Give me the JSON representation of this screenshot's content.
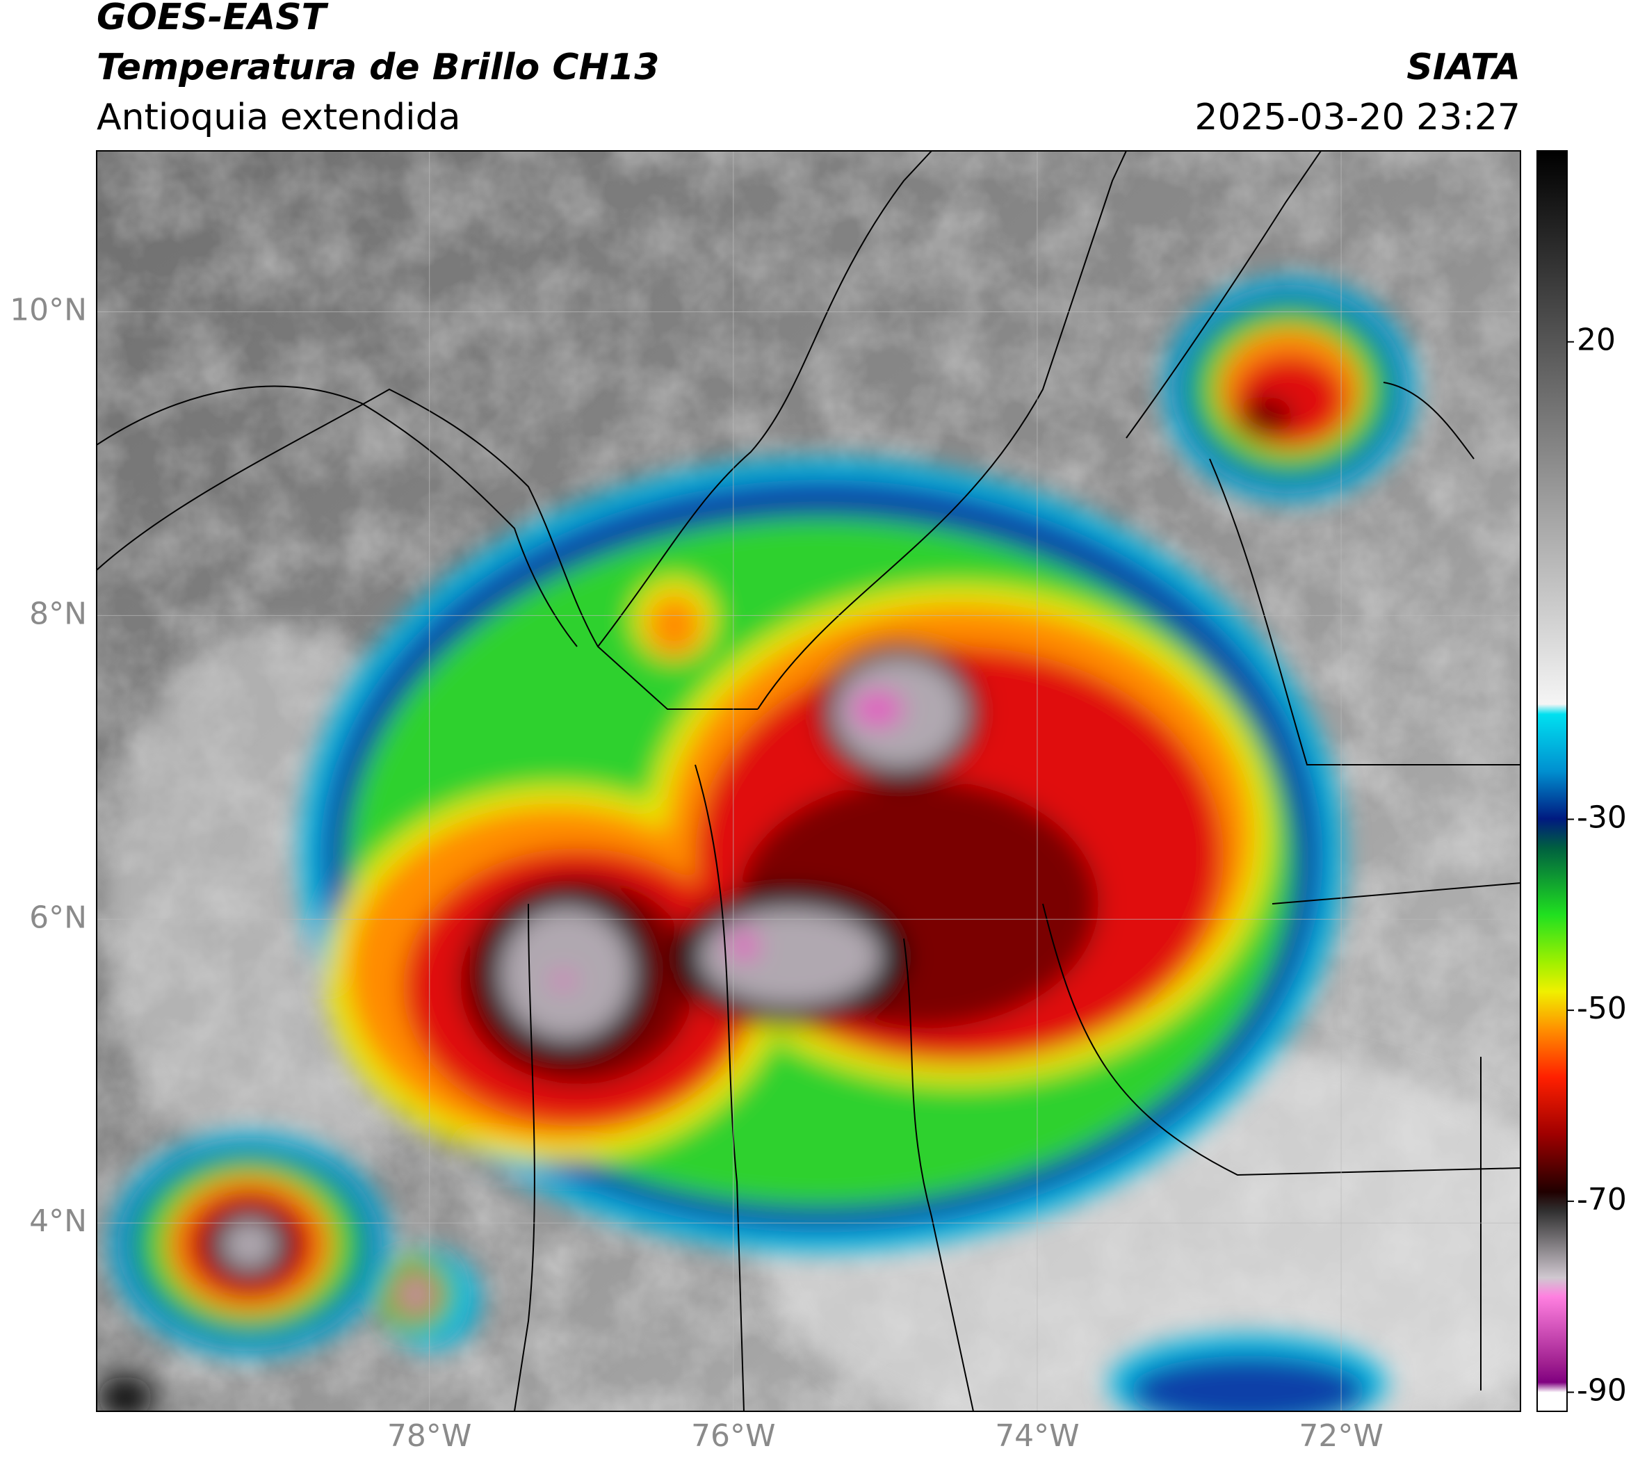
{
  "header": {
    "title": "GOES-EAST",
    "subtitle": "Temperatura de Brillo CH13",
    "region": "Antioquia extendida",
    "source": "SIATA",
    "datetime": "2025-03-20 23:27"
  },
  "map": {
    "lon_range": [
      -80.19,
      -70.82
    ],
    "lat_range": [
      2.76,
      11.06
    ],
    "lon_ticks": [
      {
        "value": -78,
        "label": "78°W"
      },
      {
        "value": -76,
        "label": "76°W"
      },
      {
        "value": -74,
        "label": "74°W"
      },
      {
        "value": -72,
        "label": "72°W"
      }
    ],
    "lat_ticks": [
      {
        "value": 10,
        "label": "10°N"
      },
      {
        "value": 8,
        "label": "8°N"
      },
      {
        "value": 6,
        "label": "6°N"
      },
      {
        "value": 4,
        "label": "4°N"
      }
    ]
  },
  "colorbar": {
    "range": [
      -92,
      40
    ],
    "ticks": [
      20,
      -30,
      -50,
      -70,
      -90
    ]
  }
}
